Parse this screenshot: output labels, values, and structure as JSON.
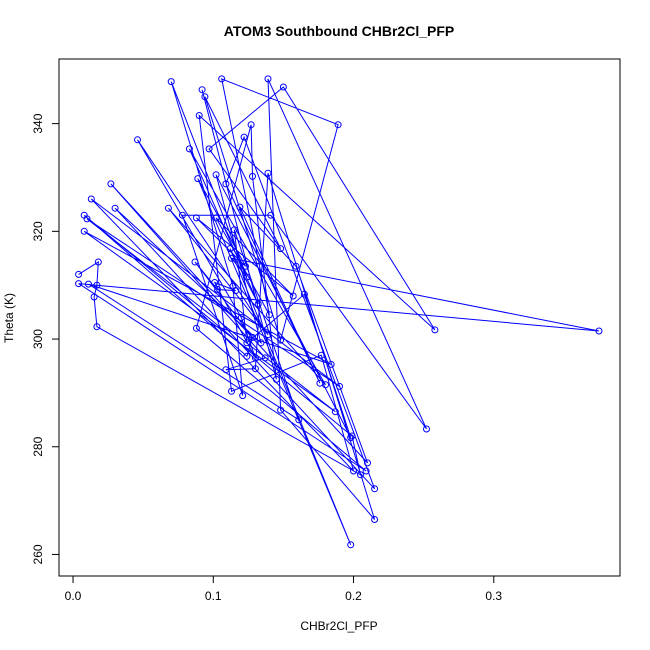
{
  "chart_data": {
    "type": "scatter",
    "title": "ATOM3 Southbound CHBr2Cl_PFP",
    "xlabel": "CHBr2Cl_PFP",
    "ylabel": "Theta (K)",
    "xlim": [
      -0.01,
      0.39
    ],
    "ylim": [
      256,
      352
    ],
    "x_ticks": [
      "0.0",
      "0.1",
      "0.2",
      "0.3"
    ],
    "x_tick_values": [
      0.0,
      0.1,
      0.2,
      0.3
    ],
    "y_ticks": [
      "260",
      "280",
      "300",
      "320",
      "340"
    ],
    "y_tick_values": [
      260,
      280,
      300,
      320,
      340
    ],
    "grid": false,
    "legend": "none",
    "connected": true,
    "series_color": "#0000ff",
    "series": [
      {
        "points": [
          [
            0.004,
            312.0
          ],
          [
            0.018,
            314.3
          ],
          [
            0.017,
            310.0
          ],
          [
            0.015,
            307.8
          ],
          [
            0.017,
            302.3
          ],
          [
            0.205,
            274.8
          ],
          [
            0.199,
            282.0
          ],
          [
            0.008,
            323.0
          ],
          [
            0.124,
            296.8
          ],
          [
            0.128,
            300.3
          ],
          [
            0.087,
            314.3
          ],
          [
            0.103,
            309.2
          ],
          [
            0.116,
            309.0
          ],
          [
            0.101,
            310.5
          ],
          [
            0.13,
            296.5
          ],
          [
            0.12,
            304.0
          ],
          [
            0.046,
            337.0
          ],
          [
            0.139,
            300.8
          ],
          [
            0.068,
            324.3
          ],
          [
            0.18,
            291.5
          ],
          [
            0.083,
            335.3
          ],
          [
            0.132,
            306.5
          ],
          [
            0.112,
            316.8
          ],
          [
            0.198,
            261.8
          ],
          [
            0.089,
            329.8
          ],
          [
            0.123,
            313.5
          ],
          [
            0.088,
            322.5
          ],
          [
            0.157,
            308.0
          ],
          [
            0.102,
            322.5
          ],
          [
            0.14,
            304.5
          ],
          [
            0.106,
            348.3
          ],
          [
            0.189,
            339.8
          ],
          [
            0.148,
            299.8
          ],
          [
            0.094,
            345.0
          ],
          [
            0.148,
            316.8
          ],
          [
            0.097,
            335.3
          ],
          [
            0.15,
            346.8
          ],
          [
            0.258,
            301.7
          ],
          [
            0.09,
            341.5
          ],
          [
            0.113,
            290.3
          ],
          [
            0.177,
            297.0
          ],
          [
            0.2,
            275.5
          ],
          [
            0.013,
            326.0
          ],
          [
            0.19,
            291.2
          ],
          [
            0.01,
            322.3
          ],
          [
            0.187,
            286.5
          ],
          [
            0.008,
            320.0
          ],
          [
            0.184,
            295.3
          ],
          [
            0.011,
            310.2
          ],
          [
            0.161,
            285.0
          ],
          [
            0.115,
            320.3
          ],
          [
            0.124,
            299.3
          ],
          [
            0.165,
            308.3
          ],
          [
            0.198,
            281.7
          ],
          [
            0.102,
            330.5
          ],
          [
            0.134,
            299.3
          ],
          [
            0.03,
            324.3
          ],
          [
            0.215,
            272.2
          ],
          [
            0.122,
            337.5
          ],
          [
            0.109,
            328.8
          ],
          [
            0.176,
            291.8
          ],
          [
            0.119,
            324.5
          ],
          [
            0.159,
            313.5
          ],
          [
            0.21,
            277.0
          ],
          [
            0.027,
            328.8
          ],
          [
            0.137,
            296.5
          ],
          [
            0.109,
            294.3
          ],
          [
            0.13,
            294.5
          ],
          [
            0.139,
            330.8
          ],
          [
            0.215,
            266.5
          ],
          [
            0.148,
            286.8
          ],
          [
            0.139,
            348.3
          ],
          [
            0.252,
            283.3
          ],
          [
            0.141,
            323.0
          ],
          [
            0.078,
            323.0
          ],
          [
            0.121,
            289.5
          ],
          [
            0.114,
            309.8
          ],
          [
            0.07,
            347.8
          ],
          [
            0.124,
            311.5
          ],
          [
            0.113,
            315.0
          ],
          [
            0.375,
            301.5
          ],
          [
            0.004,
            310.3
          ],
          [
            0.209,
            275.5
          ],
          [
            0.088,
            302.0
          ],
          [
            0.127,
            339.8
          ],
          [
            0.128,
            330.2
          ],
          [
            0.145,
            292.5
          ],
          [
            0.092,
            346.3
          ]
        ]
      }
    ]
  }
}
